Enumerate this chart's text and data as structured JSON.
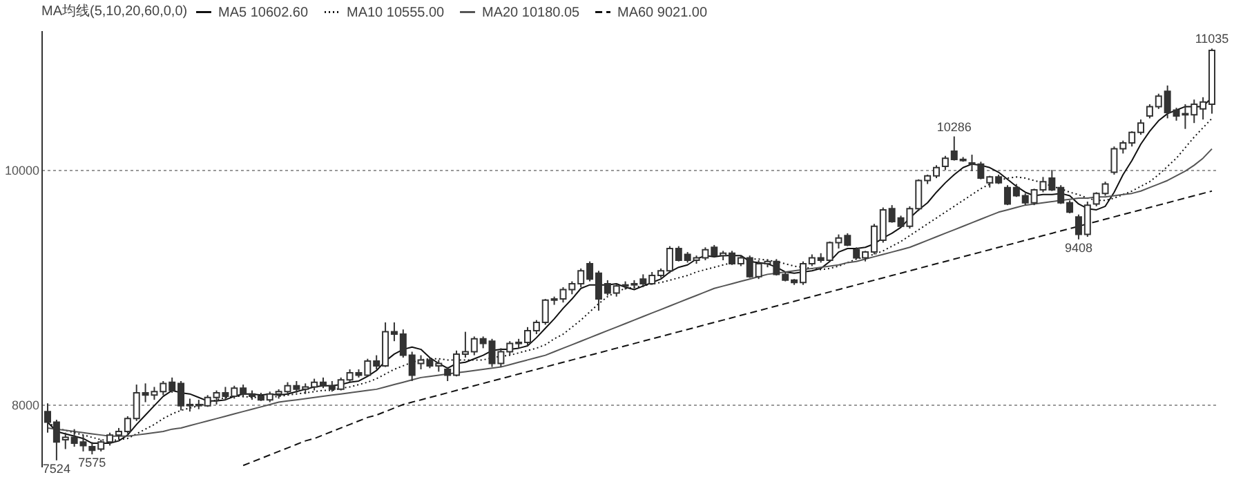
{
  "chart_data": {
    "type": "candlestick",
    "color": "#333333",
    "categories": [
      null,
      null,
      null,
      null,
      null,
      null,
      null,
      null,
      null,
      null,
      null,
      null,
      null,
      null,
      null,
      null,
      null,
      null,
      null,
      null,
      null,
      null,
      null,
      null,
      null,
      null,
      null,
      null,
      null,
      null,
      null,
      null,
      null,
      null,
      null,
      null,
      null,
      null,
      null,
      null,
      null,
      null,
      null,
      null,
      null,
      null,
      null,
      null,
      null,
      null,
      null,
      null,
      null,
      null,
      null,
      null,
      null,
      null,
      null,
      null,
      null,
      null,
      null,
      null,
      null,
      null,
      null,
      null,
      null,
      null,
      null,
      null,
      null,
      null,
      null,
      null,
      null,
      null,
      null,
      null,
      null,
      null,
      null,
      null,
      null,
      null,
      null,
      null,
      null,
      null,
      null,
      null,
      null,
      null,
      null,
      null,
      null,
      null,
      null,
      null,
      null,
      null,
      null,
      null,
      null,
      null,
      null,
      null,
      null,
      null,
      null,
      null,
      null,
      null,
      null,
      null,
      null,
      null,
      null,
      null,
      null,
      null,
      null,
      null,
      null,
      null,
      null,
      null,
      null,
      null,
      null,
      null
    ],
    "ohlc": [
      [
        7940,
        8010,
        7760,
        7850
      ],
      [
        7850,
        7870,
        7524,
        7680
      ],
      [
        7700,
        7760,
        7620,
        7720
      ],
      [
        7720,
        7790,
        7640,
        7670
      ],
      [
        7680,
        7740,
        7600,
        7650
      ],
      [
        7640,
        7680,
        7575,
        7610
      ],
      [
        7620,
        7700,
        7600,
        7680
      ],
      [
        7680,
        7760,
        7650,
        7740
      ],
      [
        7740,
        7800,
        7700,
        7770
      ],
      [
        7770,
        7900,
        7750,
        7880
      ],
      [
        7880,
        8170,
        7860,
        8100
      ],
      [
        8100,
        8180,
        8020,
        8080
      ],
      [
        8080,
        8150,
        8040,
        8110
      ],
      [
        8110,
        8200,
        8080,
        8180
      ],
      [
        8190,
        8230,
        8100,
        8120
      ],
      [
        8180,
        8200,
        7950,
        7990
      ],
      [
        7990,
        8050,
        7940,
        8000
      ],
      [
        8000,
        8040,
        7960,
        7990
      ],
      [
        7990,
        8080,
        7980,
        8060
      ],
      [
        8060,
        8120,
        8000,
        8100
      ],
      [
        8100,
        8150,
        8040,
        8070
      ],
      [
        8070,
        8160,
        8050,
        8140
      ],
      [
        8140,
        8170,
        8060,
        8090
      ],
      [
        8090,
        8120,
        8040,
        8070
      ],
      [
        8070,
        8100,
        8030,
        8040
      ],
      [
        8040,
        8110,
        8020,
        8090
      ],
      [
        8090,
        8130,
        8050,
        8110
      ],
      [
        8110,
        8190,
        8080,
        8160
      ],
      [
        8160,
        8200,
        8100,
        8130
      ],
      [
        8130,
        8180,
        8090,
        8150
      ],
      [
        8150,
        8220,
        8120,
        8190
      ],
      [
        8190,
        8230,
        8140,
        8160
      ],
      [
        8160,
        8200,
        8110,
        8130
      ],
      [
        8130,
        8230,
        8120,
        8210
      ],
      [
        8210,
        8300,
        8190,
        8270
      ],
      [
        8270,
        8300,
        8230,
        8250
      ],
      [
        8250,
        8390,
        8240,
        8370
      ],
      [
        8370,
        8420,
        8300,
        8330
      ],
      [
        8330,
        8700,
        8320,
        8620
      ],
      [
        8620,
        8700,
        8540,
        8600
      ],
      [
        8600,
        8640,
        8400,
        8420
      ],
      [
        8420,
        8450,
        8200,
        8250
      ],
      [
        8350,
        8420,
        8300,
        8380
      ],
      [
        8380,
        8400,
        8310,
        8330
      ],
      [
        8330,
        8380,
        8280,
        8350
      ],
      [
        8300,
        8320,
        8200,
        8250
      ],
      [
        8250,
        8460,
        8240,
        8430
      ],
      [
        8430,
        8620,
        8400,
        8450
      ],
      [
        8450,
        8580,
        8420,
        8560
      ],
      [
        8560,
        8580,
        8480,
        8520
      ],
      [
        8540,
        8560,
        8320,
        8350
      ],
      [
        8350,
        8480,
        8320,
        8450
      ],
      [
        8450,
        8540,
        8420,
        8520
      ],
      [
        8520,
        8560,
        8480,
        8530
      ],
      [
        8530,
        8660,
        8500,
        8630
      ],
      [
        8630,
        8720,
        8600,
        8700
      ],
      [
        8700,
        8900,
        8680,
        8890
      ],
      [
        8890,
        8920,
        8850,
        8900
      ],
      [
        8900,
        9000,
        8870,
        8980
      ],
      [
        8980,
        9050,
        8940,
        9030
      ],
      [
        9030,
        9160,
        9000,
        9140
      ],
      [
        9200,
        9220,
        9050,
        9070
      ],
      [
        9120,
        9140,
        8800,
        8900
      ],
      [
        9030,
        9060,
        8930,
        8950
      ],
      [
        8950,
        9030,
        8920,
        9010
      ],
      [
        9010,
        9050,
        8980,
        9020
      ],
      [
        9020,
        9060,
        8990,
        9030
      ],
      [
        9070,
        9110,
        9000,
        9030
      ],
      [
        9030,
        9130,
        9020,
        9100
      ],
      [
        9100,
        9160,
        9080,
        9140
      ],
      [
        9140,
        9350,
        9120,
        9330
      ],
      [
        9330,
        9350,
        9220,
        9230
      ],
      [
        9280,
        9300,
        9210,
        9230
      ],
      [
        9230,
        9270,
        9200,
        9250
      ],
      [
        9250,
        9340,
        9230,
        9320
      ],
      [
        9340,
        9360,
        9260,
        9270
      ],
      [
        9270,
        9310,
        9230,
        9290
      ],
      [
        9290,
        9310,
        9190,
        9200
      ],
      [
        9200,
        9270,
        9180,
        9250
      ],
      [
        9250,
        9270,
        9080,
        9090
      ],
      [
        9090,
        9230,
        9070,
        9200
      ],
      [
        9200,
        9240,
        9170,
        9220
      ],
      [
        9220,
        9240,
        9100,
        9110
      ],
      [
        9110,
        9130,
        9050,
        9060
      ],
      [
        9060,
        9070,
        9020,
        9040
      ],
      [
        9040,
        9220,
        9020,
        9200
      ],
      [
        9200,
        9280,
        9180,
        9250
      ],
      [
        9250,
        9290,
        9210,
        9230
      ],
      [
        9230,
        9390,
        9220,
        9380
      ],
      [
        9380,
        9450,
        9330,
        9420
      ],
      [
        9440,
        9460,
        9350,
        9360
      ],
      [
        9320,
        9340,
        9240,
        9250
      ],
      [
        9250,
        9310,
        9220,
        9300
      ],
      [
        9300,
        9540,
        9280,
        9520
      ],
      [
        9400,
        9680,
        9380,
        9660
      ],
      [
        9670,
        9700,
        9550,
        9560
      ],
      [
        9590,
        9610,
        9510,
        9520
      ],
      [
        9520,
        9690,
        9500,
        9670
      ],
      [
        9670,
        9920,
        9650,
        9910
      ],
      [
        9910,
        9960,
        9880,
        9950
      ],
      [
        9950,
        10040,
        9930,
        10020
      ],
      [
        10030,
        10120,
        10000,
        10100
      ],
      [
        10160,
        10286,
        10080,
        10090
      ],
      [
        10090,
        10110,
        10070,
        10080
      ],
      [
        10050,
        10130,
        9990,
        10060
      ],
      [
        10050,
        10070,
        9920,
        9930
      ],
      [
        9890,
        9950,
        9850,
        9940
      ],
      [
        9940,
        9960,
        9880,
        9890
      ],
      [
        9850,
        9870,
        9700,
        9710
      ],
      [
        9850,
        9880,
        9770,
        9780
      ],
      [
        9780,
        9800,
        9700,
        9720
      ],
      [
        9720,
        9840,
        9700,
        9830
      ],
      [
        9830,
        9940,
        9810,
        9900
      ],
      [
        9930,
        10000,
        9820,
        9830
      ],
      [
        9850,
        9870,
        9710,
        9720
      ],
      [
        9720,
        9740,
        9630,
        9640
      ],
      [
        9600,
        9620,
        9408,
        9450
      ],
      [
        9450,
        9730,
        9430,
        9700
      ],
      [
        9710,
        9810,
        9690,
        9800
      ],
      [
        9800,
        9900,
        9780,
        9880
      ],
      [
        9980,
        10200,
        9960,
        10180
      ],
      [
        10180,
        10250,
        10140,
        10230
      ],
      [
        10230,
        10330,
        10200,
        10320
      ],
      [
        10320,
        10430,
        10300,
        10400
      ],
      [
        10460,
        10560,
        10440,
        10540
      ],
      [
        10540,
        10650,
        10520,
        10630
      ],
      [
        10670,
        10720,
        10440,
        10490
      ],
      [
        10510,
        10530,
        10420,
        10460
      ],
      [
        10480,
        10560,
        10350,
        10470
      ],
      [
        10470,
        10600,
        10400,
        10560
      ],
      [
        10520,
        10620,
        10430,
        10580
      ],
      [
        10560,
        11035,
        10480,
        11020
      ]
    ],
    "series": [
      {
        "type": "line",
        "name": "MA5 10602.60",
        "color": "#111111",
        "line_style": "solid",
        "values": [
          7850,
          7770,
          7750,
          7730,
          7710,
          7670,
          7670,
          7670,
          7690,
          7740,
          7830,
          7910,
          7990,
          8070,
          8120,
          8100,
          8090,
          8060,
          8030,
          8030,
          8040,
          8070,
          8090,
          8090,
          8080,
          8090,
          8080,
          8090,
          8110,
          8130,
          8150,
          8160,
          8160,
          8170,
          8190,
          8200,
          8240,
          8290,
          8370,
          8430,
          8470,
          8490,
          8470,
          8400,
          8350,
          8310,
          8350,
          8360,
          8390,
          8420,
          8460,
          8470,
          8470,
          8480,
          8500,
          8570,
          8650,
          8730,
          8820,
          8900,
          8990,
          9020,
          9020,
          9020,
          9030,
          9000,
          8980,
          9010,
          9040,
          9070,
          9130,
          9170,
          9190,
          9240,
          9270,
          9260,
          9270,
          9270,
          9270,
          9220,
          9210,
          9200,
          9170,
          9130,
          9120,
          9130,
          9140,
          9160,
          9220,
          9300,
          9330,
          9330,
          9340,
          9370,
          9420,
          9460,
          9510,
          9590,
          9660,
          9720,
          9810,
          9890,
          9960,
          10020,
          10050,
          10040,
          10020,
          9980,
          9920,
          9860,
          9810,
          9780,
          9790,
          9790,
          9800,
          9780,
          9710,
          9670,
          9660,
          9690,
          9810,
          9960,
          10080,
          10220,
          10330,
          10420,
          10480,
          10510,
          10540,
          10540,
          10540,
          10620
        ]
      },
      {
        "type": "line",
        "name": "MA10 10555.00",
        "color": "#111111",
        "line_style": "dotted",
        "values": [
          7850,
          7800,
          7780,
          7760,
          7740,
          7720,
          7700,
          7690,
          7700,
          7710,
          7750,
          7790,
          7830,
          7880,
          7920,
          7950,
          7970,
          7990,
          8010,
          8040,
          8060,
          8070,
          8070,
          8060,
          8060,
          8060,
          8070,
          8080,
          8090,
          8100,
          8110,
          8120,
          8120,
          8140,
          8150,
          8170,
          8190,
          8220,
          8260,
          8300,
          8330,
          8360,
          8380,
          8390,
          8390,
          8380,
          8380,
          8380,
          8380,
          8380,
          8400,
          8410,
          8420,
          8440,
          8460,
          8480,
          8510,
          8560,
          8600,
          8660,
          8720,
          8790,
          8860,
          8920,
          8960,
          8990,
          9000,
          9010,
          9030,
          9040,
          9060,
          9080,
          9100,
          9130,
          9150,
          9170,
          9190,
          9210,
          9230,
          9240,
          9240,
          9230,
          9220,
          9200,
          9180,
          9170,
          9160,
          9150,
          9160,
          9180,
          9210,
          9240,
          9260,
          9280,
          9310,
          9350,
          9390,
          9440,
          9490,
          9540,
          9590,
          9640,
          9690,
          9740,
          9790,
          9840,
          9880,
          9910,
          9930,
          9940,
          9930,
          9910,
          9890,
          9860,
          9840,
          9810,
          9790,
          9760,
          9740,
          9740,
          9760,
          9790,
          9820,
          9860,
          9900,
          9960,
          10030,
          10100,
          10190,
          10280,
          10360,
          10440
        ]
      },
      {
        "type": "line",
        "name": "MA20 10180.05",
        "color": "#555555",
        "line_style": "solid",
        "values": [
          7800,
          7790,
          7780,
          7770,
          7760,
          7750,
          7740,
          7730,
          7730,
          7730,
          7740,
          7750,
          7760,
          7770,
          7790,
          7800,
          7820,
          7840,
          7860,
          7880,
          7900,
          7920,
          7940,
          7960,
          7980,
          8000,
          8020,
          8030,
          8040,
          8050,
          8060,
          8070,
          8080,
          8090,
          8100,
          8110,
          8120,
          8130,
          8150,
          8170,
          8190,
          8210,
          8230,
          8240,
          8250,
          8260,
          8270,
          8280,
          8290,
          8300,
          8310,
          8320,
          8340,
          8360,
          8380,
          8400,
          8420,
          8450,
          8480,
          8510,
          8540,
          8570,
          8600,
          8630,
          8660,
          8690,
          8720,
          8750,
          8780,
          8810,
          8840,
          8870,
          8900,
          8930,
          8960,
          8990,
          9010,
          9030,
          9050,
          9070,
          9090,
          9110,
          9120,
          9130,
          9140,
          9150,
          9160,
          9170,
          9180,
          9190,
          9210,
          9220,
          9240,
          9260,
          9280,
          9300,
          9320,
          9340,
          9370,
          9400,
          9430,
          9460,
          9490,
          9520,
          9550,
          9580,
          9610,
          9640,
          9660,
          9680,
          9700,
          9710,
          9720,
          9730,
          9740,
          9750,
          9760,
          9760,
          9770,
          9770,
          9780,
          9790,
          9800,
          9820,
          9850,
          9880,
          9910,
          9950,
          9990,
          10040,
          10100,
          10180
        ]
      },
      {
        "type": "line",
        "name": "MA60 9021.00",
        "color": "#111111",
        "line_style": "dashed",
        "values": [
          null,
          null,
          null,
          null,
          null,
          null,
          null,
          null,
          null,
          null,
          null,
          null,
          null,
          null,
          null,
          null,
          null,
          null,
          null,
          null,
          null,
          null,
          7480,
          7510,
          7540,
          7570,
          7600,
          7630,
          7660,
          7690,
          7710,
          7740,
          7770,
          7800,
          7830,
          7860,
          7890,
          7910,
          7940,
          7970,
          8000,
          8020,
          8040,
          8060,
          8080,
          8100,
          8120,
          8140,
          8160,
          8180,
          8200,
          8220,
          8240,
          8260,
          8280,
          8300,
          8320,
          8340,
          8360,
          8380,
          8400,
          8420,
          8440,
          8460,
          8480,
          8500,
          8520,
          8540,
          8560,
          8580,
          8600,
          8620,
          8640,
          8660,
          8680,
          8700,
          8720,
          8740,
          8760,
          8780,
          8800,
          8820,
          8840,
          8860,
          8880,
          8900,
          8920,
          8940,
          8960,
          8980,
          9000,
          9020,
          9040,
          9060,
          9080,
          9100,
          9120,
          9140,
          9160,
          9180,
          9200,
          9220,
          9240,
          9260,
          9280,
          9300,
          9320,
          9340,
          9360,
          9380,
          9400,
          9420,
          9440,
          9460,
          9480,
          9500,
          9520,
          9540,
          9560,
          9580,
          9600,
          9620,
          9640,
          9660,
          9680,
          9700,
          9720,
          9740,
          9760,
          9780,
          9800,
          9820
        ]
      }
    ],
    "legend_title": "MA均线(5,10,20,60,0,0)",
    "legend": "top left",
    "ylim": [
      7470,
      11190
    ],
    "yticks": [
      8000,
      10000
    ],
    "grid": "y",
    "annotations": [
      {
        "text": "7524",
        "y": 7524
      },
      {
        "text": "7575",
        "y": 7575
      },
      {
        "text": "10286",
        "y": 10286
      },
      {
        "text": "9408",
        "y": 9408
      },
      {
        "text": "11035",
        "y": 11035
      }
    ]
  }
}
